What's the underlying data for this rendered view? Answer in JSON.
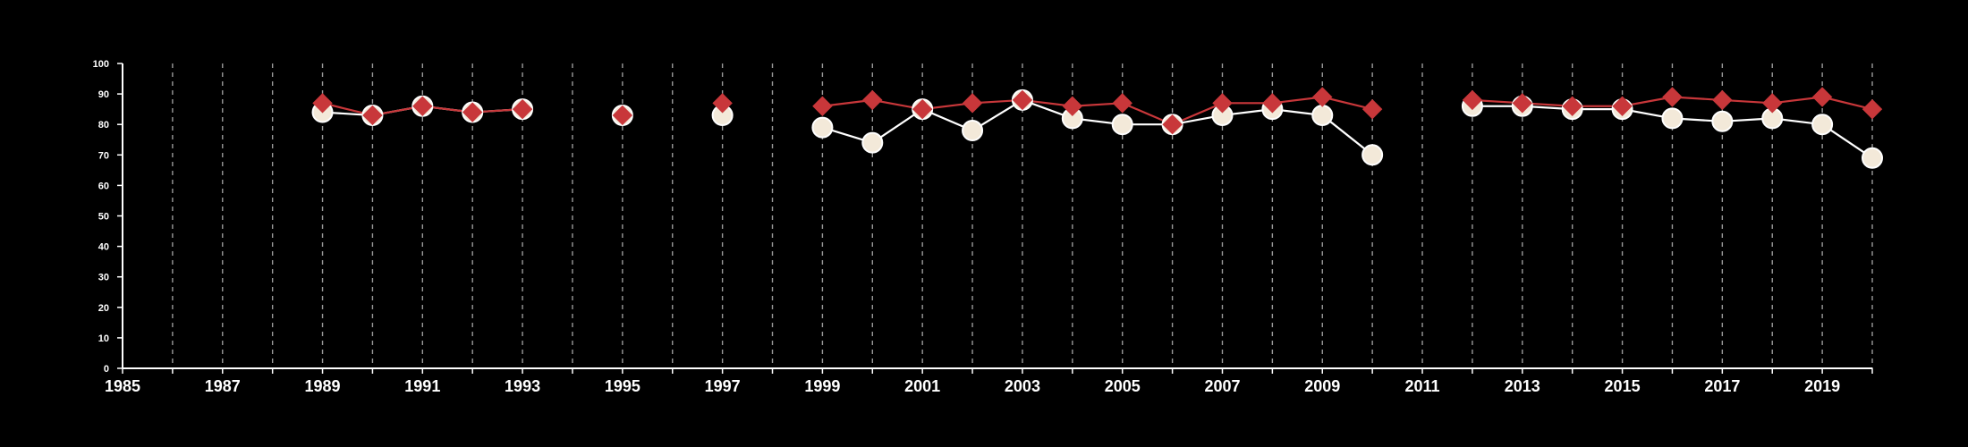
{
  "chart_data": {
    "type": "line",
    "title": "",
    "xlabel": "",
    "ylabel": "",
    "xlim": [
      1985,
      2020
    ],
    "ylim": [
      0,
      100
    ],
    "x_ticks": [
      1985,
      1987,
      1989,
      1991,
      1993,
      1995,
      1997,
      1999,
      2001,
      2003,
      2005,
      2007,
      2009,
      2011,
      2013,
      2015,
      2017,
      2019
    ],
    "y_ticks": [
      0,
      10,
      20,
      30,
      40,
      50,
      60,
      70,
      80,
      90,
      100
    ],
    "grid": "vertical dashed lines at every year",
    "legend": "none",
    "series": [
      {
        "marker": "circle",
        "color": "#f3e9d9",
        "line_color": "#ffffff",
        "points": [
          [
            1989,
            84
          ],
          [
            1990,
            83
          ],
          [
            1991,
            86
          ],
          [
            1992,
            84
          ],
          [
            1993,
            85
          ],
          [
            1995,
            83
          ],
          [
            1997,
            83
          ],
          [
            1999,
            79
          ],
          [
            2000,
            74
          ],
          [
            2001,
            85
          ],
          [
            2002,
            78
          ],
          [
            2003,
            88
          ],
          [
            2004,
            82
          ],
          [
            2005,
            80
          ],
          [
            2006,
            80
          ],
          [
            2007,
            83
          ],
          [
            2008,
            85
          ],
          [
            2009,
            83
          ],
          [
            2010,
            70
          ],
          [
            2012,
            86
          ],
          [
            2013,
            86
          ],
          [
            2014,
            85
          ],
          [
            2015,
            85
          ],
          [
            2016,
            82
          ],
          [
            2017,
            81
          ],
          [
            2018,
            82
          ],
          [
            2019,
            80
          ],
          [
            2020,
            69
          ]
        ]
      },
      {
        "marker": "diamond",
        "color": "#c8373a",
        "line_color": "#c8373a",
        "points": [
          [
            1989,
            87
          ],
          [
            1990,
            83
          ],
          [
            1991,
            86
          ],
          [
            1992,
            84
          ],
          [
            1993,
            85
          ],
          [
            1995,
            83
          ],
          [
            1997,
            87
          ],
          [
            1999,
            86
          ],
          [
            2000,
            88
          ],
          [
            2001,
            85
          ],
          [
            2002,
            87
          ],
          [
            2003,
            88
          ],
          [
            2004,
            86
          ],
          [
            2005,
            87
          ],
          [
            2006,
            80
          ],
          [
            2007,
            87
          ],
          [
            2008,
            87
          ],
          [
            2009,
            89
          ],
          [
            2010,
            85
          ],
          [
            2012,
            88
          ],
          [
            2013,
            87
          ],
          [
            2014,
            86
          ],
          [
            2015,
            86
          ],
          [
            2016,
            89
          ],
          [
            2017,
            88
          ],
          [
            2018,
            87
          ],
          [
            2019,
            89
          ],
          [
            2020,
            85
          ]
        ]
      }
    ]
  }
}
